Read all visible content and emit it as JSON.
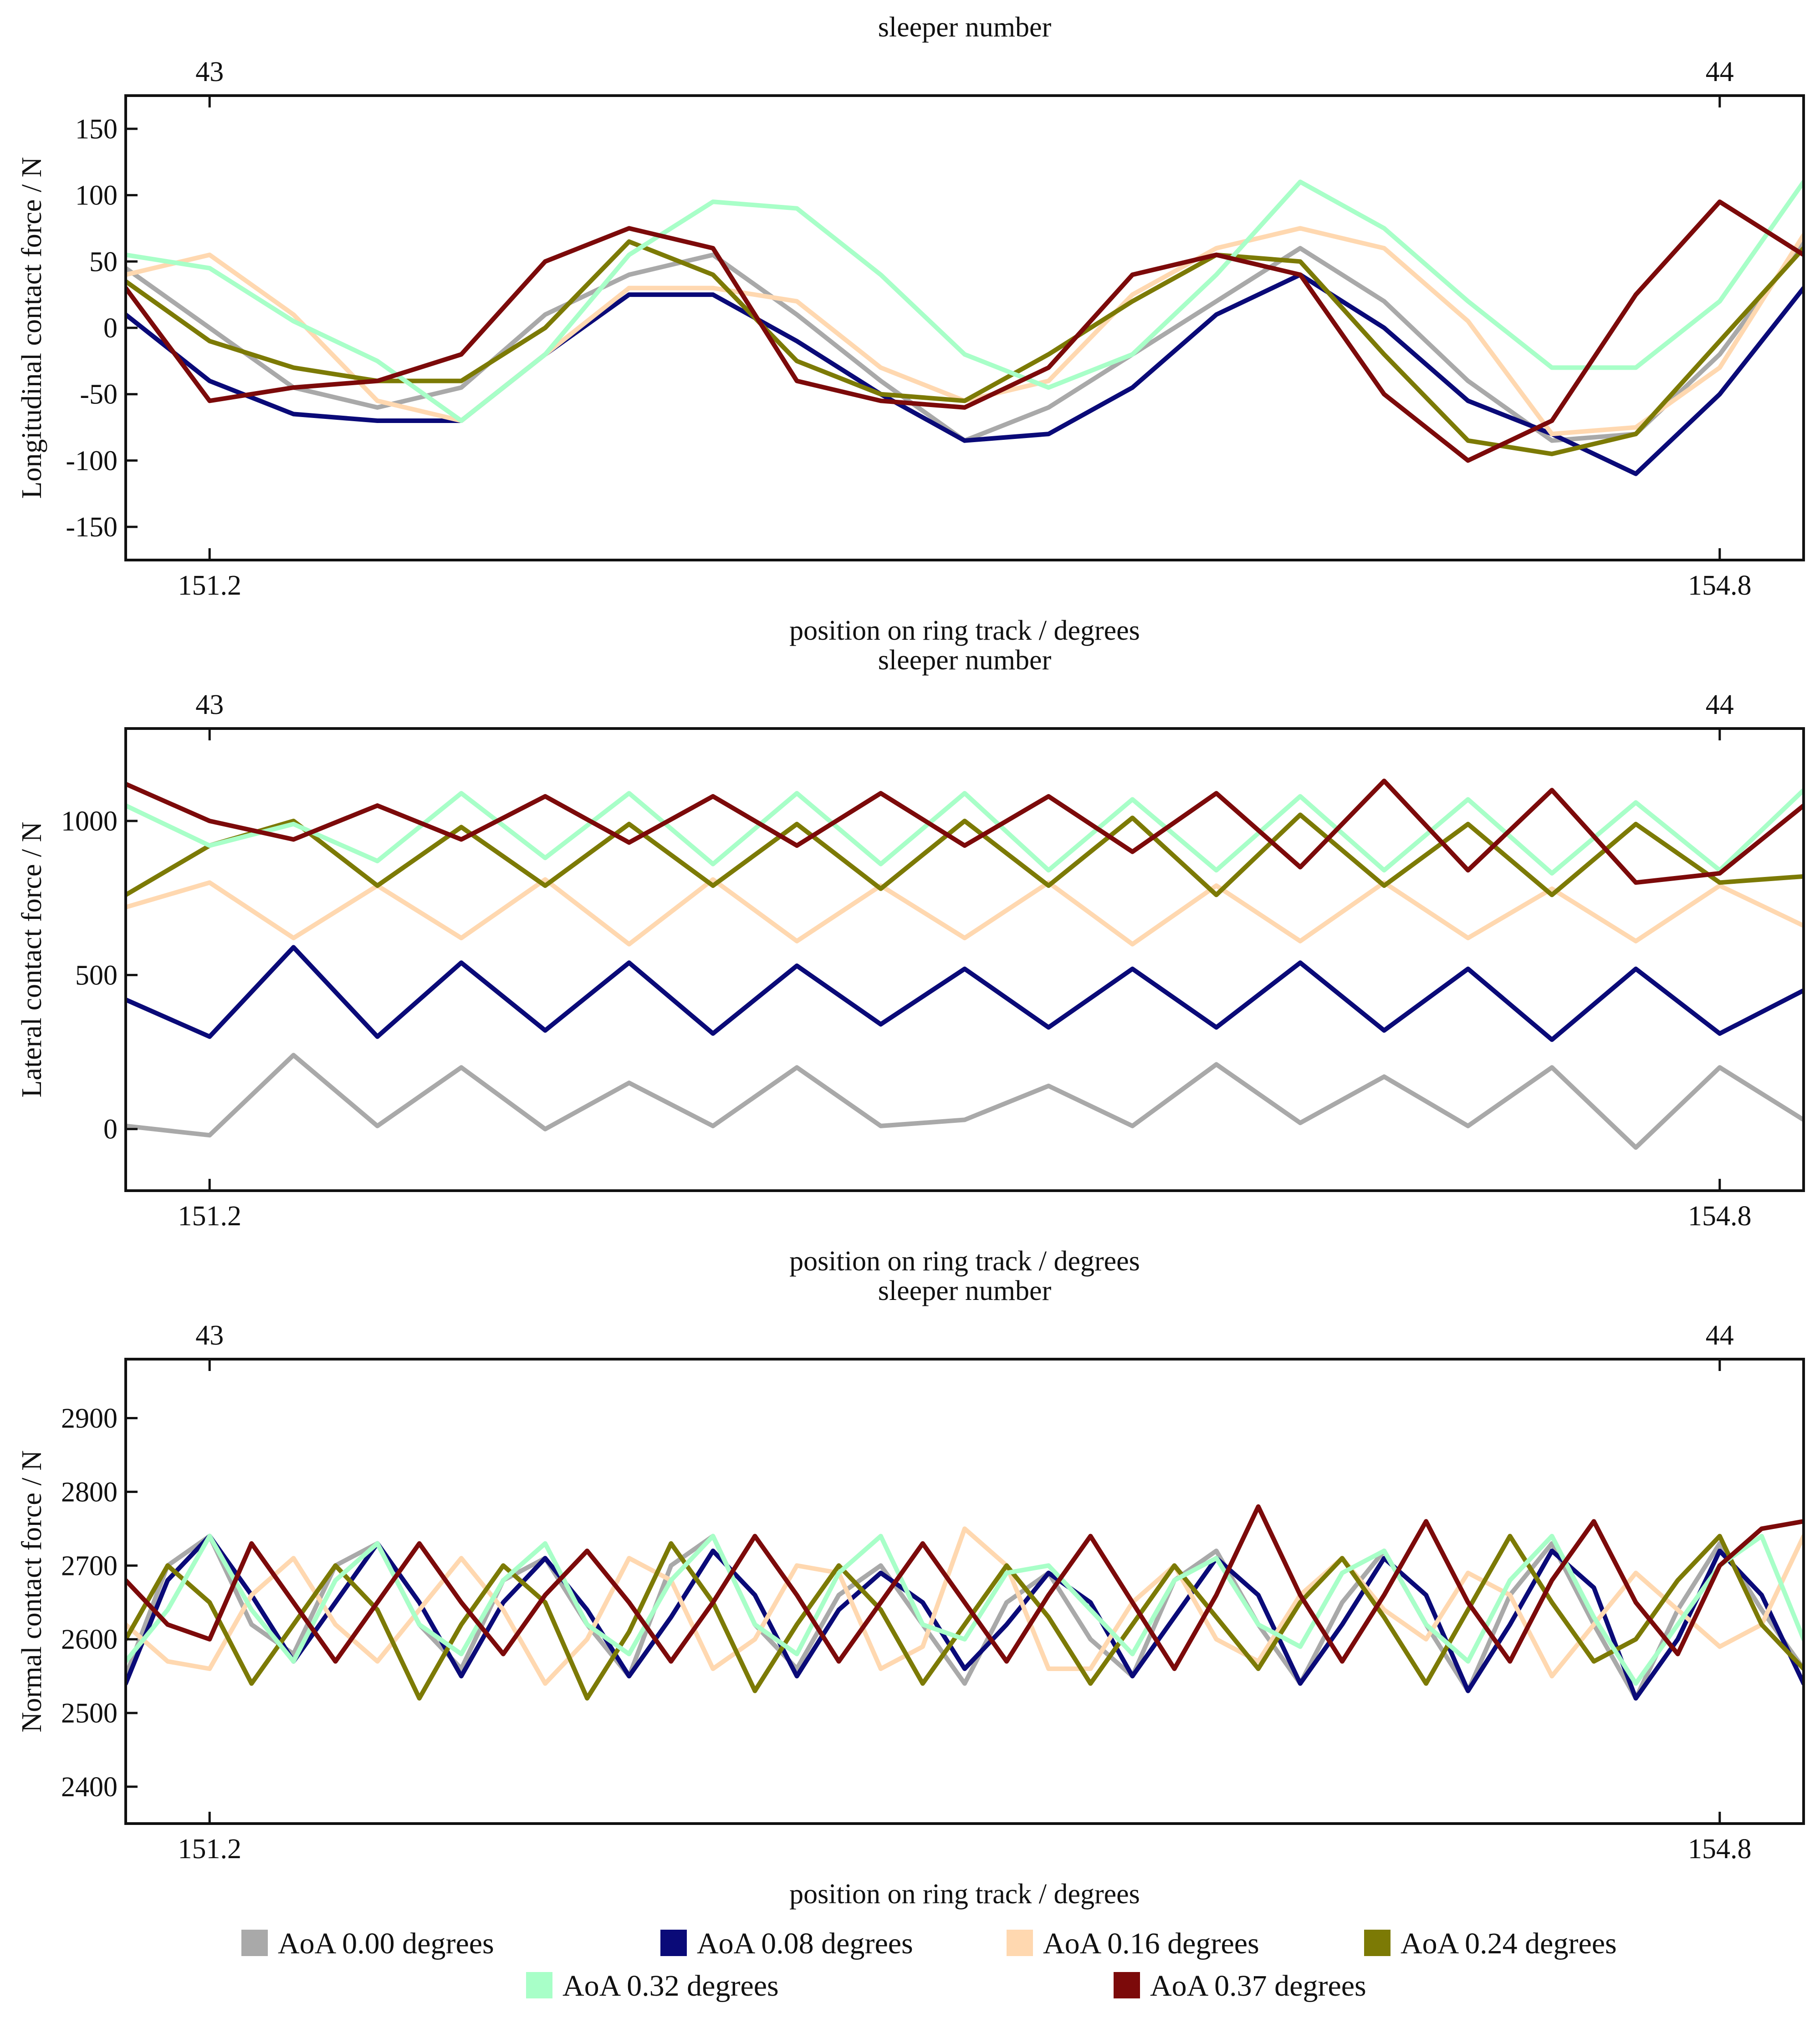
{
  "chart_data": [
    {
      "type": "line",
      "id": "longitudinal",
      "ylabel": "Longitudinal contact force / N",
      "xlabel": "position on ring track / degrees",
      "top_xlabel": "sleeper number",
      "ylim": [
        -175,
        175
      ],
      "yticks": [
        -150,
        -100,
        -50,
        0,
        50,
        100,
        150
      ],
      "xlim": [
        151.0,
        155.0
      ],
      "xticks": [
        151.2,
        154.8
      ],
      "xtick_labels": [
        "151.2",
        "154.8"
      ],
      "top_xticks": [
        151.2,
        154.8
      ],
      "top_xtick_labels": [
        "43",
        "44"
      ],
      "x": [
        151.0,
        151.2,
        151.4,
        151.6,
        151.8,
        152.0,
        152.2,
        152.4,
        152.6,
        152.8,
        153.0,
        153.2,
        153.4,
        153.6,
        153.8,
        154.0,
        154.2,
        154.4,
        154.6,
        154.8,
        155.0
      ],
      "series": [
        {
          "name": "AoA 0.00 degrees",
          "values": [
            45,
            0,
            -45,
            -60,
            -45,
            10,
            40,
            55,
            10,
            -40,
            -85,
            -60,
            -20,
            20,
            60,
            20,
            -40,
            -85,
            -80,
            -20,
            65
          ]
        },
        {
          "name": "AoA 0.08 degrees",
          "values": [
            10,
            -40,
            -65,
            -70,
            -70,
            -20,
            25,
            25,
            -10,
            -50,
            -85,
            -80,
            -45,
            10,
            40,
            0,
            -55,
            -80,
            -110,
            -50,
            30
          ]
        },
        {
          "name": "AoA 0.16 degrees",
          "values": [
            40,
            55,
            10,
            -55,
            -70,
            -20,
            30,
            30,
            20,
            -30,
            -55,
            -40,
            25,
            60,
            75,
            60,
            5,
            -80,
            -75,
            -30,
            70
          ]
        },
        {
          "name": "AoA 0.24 degrees",
          "values": [
            35,
            -10,
            -30,
            -40,
            -40,
            0,
            65,
            40,
            -25,
            -50,
            -55,
            -20,
            20,
            55,
            50,
            -20,
            -85,
            -95,
            -80,
            -10,
            60
          ]
        },
        {
          "name": "AoA 0.32 degrees",
          "values": [
            55,
            45,
            5,
            -25,
            -70,
            -20,
            55,
            95,
            90,
            40,
            -20,
            -45,
            -20,
            40,
            110,
            75,
            20,
            -30,
            -30,
            20,
            110
          ]
        },
        {
          "name": "AoA 0.37 degrees",
          "values": [
            30,
            -55,
            -45,
            -40,
            -20,
            50,
            75,
            60,
            -40,
            -55,
            -60,
            -30,
            40,
            55,
            40,
            -50,
            -100,
            -70,
            25,
            95,
            55
          ]
        }
      ]
    },
    {
      "type": "line",
      "id": "lateral",
      "ylabel": "Lateral contact force / N",
      "xlabel": "position on ring track / degrees",
      "top_xlabel": "sleeper number",
      "ylim": [
        -200,
        1300
      ],
      "yticks": [
        0,
        500,
        1000
      ],
      "xlim": [
        151.0,
        155.0
      ],
      "xticks": [
        151.2,
        154.8
      ],
      "xtick_labels": [
        "151.2",
        "154.8"
      ],
      "top_xticks": [
        151.2,
        154.8
      ],
      "top_xtick_labels": [
        "43",
        "44"
      ],
      "x": [
        151.0,
        151.2,
        151.4,
        151.6,
        151.8,
        152.0,
        152.2,
        152.4,
        152.6,
        152.8,
        153.0,
        153.2,
        153.4,
        153.6,
        153.8,
        154.0,
        154.2,
        154.4,
        154.6,
        154.8,
        155.0
      ],
      "series": [
        {
          "name": "AoA 0.00 degrees",
          "values": [
            10,
            -20,
            240,
            10,
            200,
            0,
            150,
            10,
            200,
            10,
            30,
            140,
            10,
            210,
            20,
            170,
            10,
            200,
            -60,
            200,
            30
          ]
        },
        {
          "name": "AoA 0.08 degrees",
          "values": [
            420,
            300,
            590,
            300,
            540,
            320,
            540,
            310,
            530,
            340,
            520,
            330,
            520,
            330,
            540,
            320,
            520,
            290,
            520,
            310,
            450
          ]
        },
        {
          "name": "AoA 0.16 degrees",
          "values": [
            720,
            800,
            620,
            790,
            620,
            810,
            600,
            810,
            610,
            790,
            620,
            800,
            600,
            790,
            610,
            800,
            620,
            780,
            610,
            790,
            660
          ]
        },
        {
          "name": "AoA 0.24 degrees",
          "values": [
            760,
            920,
            1000,
            790,
            980,
            790,
            990,
            790,
            990,
            780,
            1000,
            790,
            1010,
            760,
            1020,
            790,
            990,
            760,
            990,
            800,
            820
          ]
        },
        {
          "name": "AoA 0.32 degrees",
          "values": [
            1050,
            920,
            990,
            870,
            1090,
            880,
            1090,
            860,
            1090,
            860,
            1090,
            840,
            1070,
            840,
            1080,
            840,
            1070,
            830,
            1060,
            840,
            1100
          ]
        },
        {
          "name": "AoA 0.37 degrees",
          "values": [
            1120,
            1000,
            940,
            1050,
            940,
            1080,
            930,
            1080,
            920,
            1090,
            920,
            1080,
            900,
            1090,
            850,
            1130,
            840,
            1100,
            800,
            830,
            1050
          ]
        }
      ]
    },
    {
      "type": "line",
      "id": "normal",
      "ylabel": "Normal contact force / N",
      "xlabel": "position on ring track / degrees",
      "top_xlabel": "sleeper number",
      "ylim": [
        2350,
        2980
      ],
      "yticks": [
        2400,
        2500,
        2600,
        2700,
        2800,
        2900
      ],
      "xlim": [
        151.0,
        155.0
      ],
      "xticks": [
        151.2,
        154.8
      ],
      "xtick_labels": [
        "151.2",
        "154.8"
      ],
      "top_xticks": [
        151.2,
        154.8
      ],
      "top_xtick_labels": [
        "43",
        "44"
      ],
      "x": [
        151.0,
        151.1,
        151.2,
        151.3,
        151.4,
        151.5,
        151.6,
        151.7,
        151.8,
        151.9,
        152.0,
        152.1,
        152.2,
        152.3,
        152.4,
        152.5,
        152.6,
        152.7,
        152.8,
        152.9,
        153.0,
        153.1,
        153.2,
        153.3,
        153.4,
        153.5,
        153.6,
        153.7,
        153.8,
        153.9,
        154.0,
        154.1,
        154.2,
        154.3,
        154.4,
        154.5,
        154.6,
        154.7,
        154.8,
        154.9,
        155.0
      ],
      "series": [
        {
          "name": "AoA 0.00 degrees",
          "values": [
            2550,
            2700,
            2740,
            2620,
            2580,
            2700,
            2730,
            2620,
            2560,
            2680,
            2710,
            2620,
            2550,
            2700,
            2740,
            2620,
            2560,
            2660,
            2700,
            2620,
            2540,
            2650,
            2690,
            2600,
            2550,
            2680,
            2720,
            2620,
            2540,
            2650,
            2720,
            2620,
            2530,
            2660,
            2730,
            2620,
            2520,
            2640,
            2730,
            2640,
            2560
          ]
        },
        {
          "name": "AoA 0.08 degrees",
          "values": [
            2540,
            2680,
            2740,
            2660,
            2570,
            2650,
            2730,
            2650,
            2550,
            2650,
            2710,
            2640,
            2550,
            2630,
            2720,
            2660,
            2550,
            2640,
            2690,
            2650,
            2560,
            2620,
            2690,
            2650,
            2550,
            2630,
            2710,
            2660,
            2540,
            2620,
            2710,
            2660,
            2530,
            2620,
            2720,
            2670,
            2520,
            2600,
            2720,
            2660,
            2540
          ]
        },
        {
          "name": "AoA 0.16 degrees",
          "values": [
            2620,
            2570,
            2560,
            2660,
            2710,
            2620,
            2570,
            2640,
            2710,
            2640,
            2540,
            2600,
            2710,
            2680,
            2560,
            2600,
            2700,
            2690,
            2560,
            2590,
            2750,
            2700,
            2560,
            2560,
            2650,
            2700,
            2600,
            2570,
            2660,
            2710,
            2640,
            2600,
            2690,
            2660,
            2550,
            2620,
            2690,
            2640,
            2590,
            2620,
            2740
          ]
        },
        {
          "name": "AoA 0.24 degrees",
          "values": [
            2600,
            2700,
            2650,
            2540,
            2620,
            2700,
            2640,
            2520,
            2620,
            2700,
            2650,
            2520,
            2610,
            2730,
            2650,
            2530,
            2620,
            2700,
            2640,
            2540,
            2620,
            2700,
            2630,
            2540,
            2620,
            2700,
            2630,
            2560,
            2650,
            2710,
            2630,
            2540,
            2640,
            2740,
            2650,
            2570,
            2600,
            2680,
            2740,
            2620,
            2560
          ]
        },
        {
          "name": "AoA 0.32 degrees",
          "values": [
            2570,
            2640,
            2740,
            2640,
            2570,
            2680,
            2730,
            2620,
            2580,
            2680,
            2730,
            2620,
            2580,
            2680,
            2740,
            2620,
            2580,
            2690,
            2740,
            2620,
            2600,
            2690,
            2700,
            2640,
            2580,
            2680,
            2710,
            2620,
            2590,
            2690,
            2720,
            2620,
            2570,
            2680,
            2740,
            2630,
            2540,
            2620,
            2700,
            2740,
            2600
          ]
        },
        {
          "name": "AoA 0.37 degrees",
          "values": [
            2680,
            2620,
            2600,
            2730,
            2650,
            2570,
            2650,
            2730,
            2650,
            2580,
            2660,
            2720,
            2650,
            2570,
            2650,
            2740,
            2660,
            2570,
            2650,
            2730,
            2650,
            2570,
            2660,
            2740,
            2650,
            2560,
            2660,
            2780,
            2660,
            2570,
            2660,
            2760,
            2650,
            2570,
            2680,
            2760,
            2650,
            2580,
            2700,
            2750,
            2760
          ]
        }
      ]
    }
  ],
  "legend": [
    {
      "name": "AoA 0.00 degrees",
      "color": "#a9a9a9"
    },
    {
      "name": "AoA 0.08 degrees",
      "color": "#0a0a78"
    },
    {
      "name": "AoA 0.16 degrees",
      "color": "#ffd8b0"
    },
    {
      "name": "AoA 0.24 degrees",
      "color": "#7c7a05"
    },
    {
      "name": "AoA 0.32 degrees",
      "color": "#a8ffc8"
    },
    {
      "name": "AoA 0.37 degrees",
      "color": "#7c0a0a"
    }
  ]
}
